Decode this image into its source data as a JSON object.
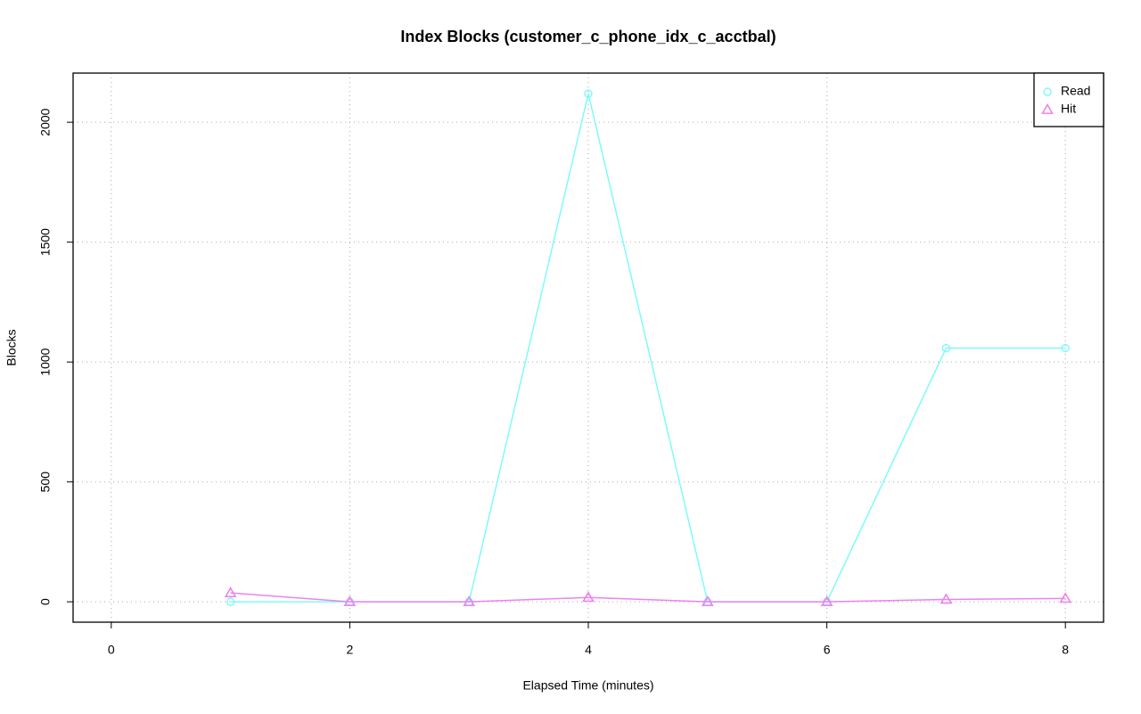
{
  "chart_data": {
    "type": "line",
    "title": "Index Blocks (customer_c_phone_idx_c_acctbal)",
    "x_label": "Elapsed Time (minutes)",
    "y_label": "Blocks",
    "x": [
      1,
      2,
      3,
      4,
      5,
      6,
      7,
      8
    ],
    "series": [
      {
        "name": "Read",
        "color": "#7ffafa",
        "marker": "circle",
        "values": [
          0,
          0,
          0,
          2119,
          0,
          0,
          1058,
          1058
        ]
      },
      {
        "name": "Hit",
        "color": "#ee82ee",
        "marker": "triangle",
        "values": [
          37,
          0,
          0,
          18,
          0,
          0,
          10,
          14
        ]
      }
    ],
    "xlim": [
      -0.32,
      8.32
    ],
    "xticks": [
      0,
      2,
      4,
      6,
      8
    ],
    "ylim": [
      -85,
      2205
    ],
    "yticks": [
      0,
      500,
      1000,
      1500,
      2000
    ],
    "grid": true,
    "legend": "top-right"
  }
}
